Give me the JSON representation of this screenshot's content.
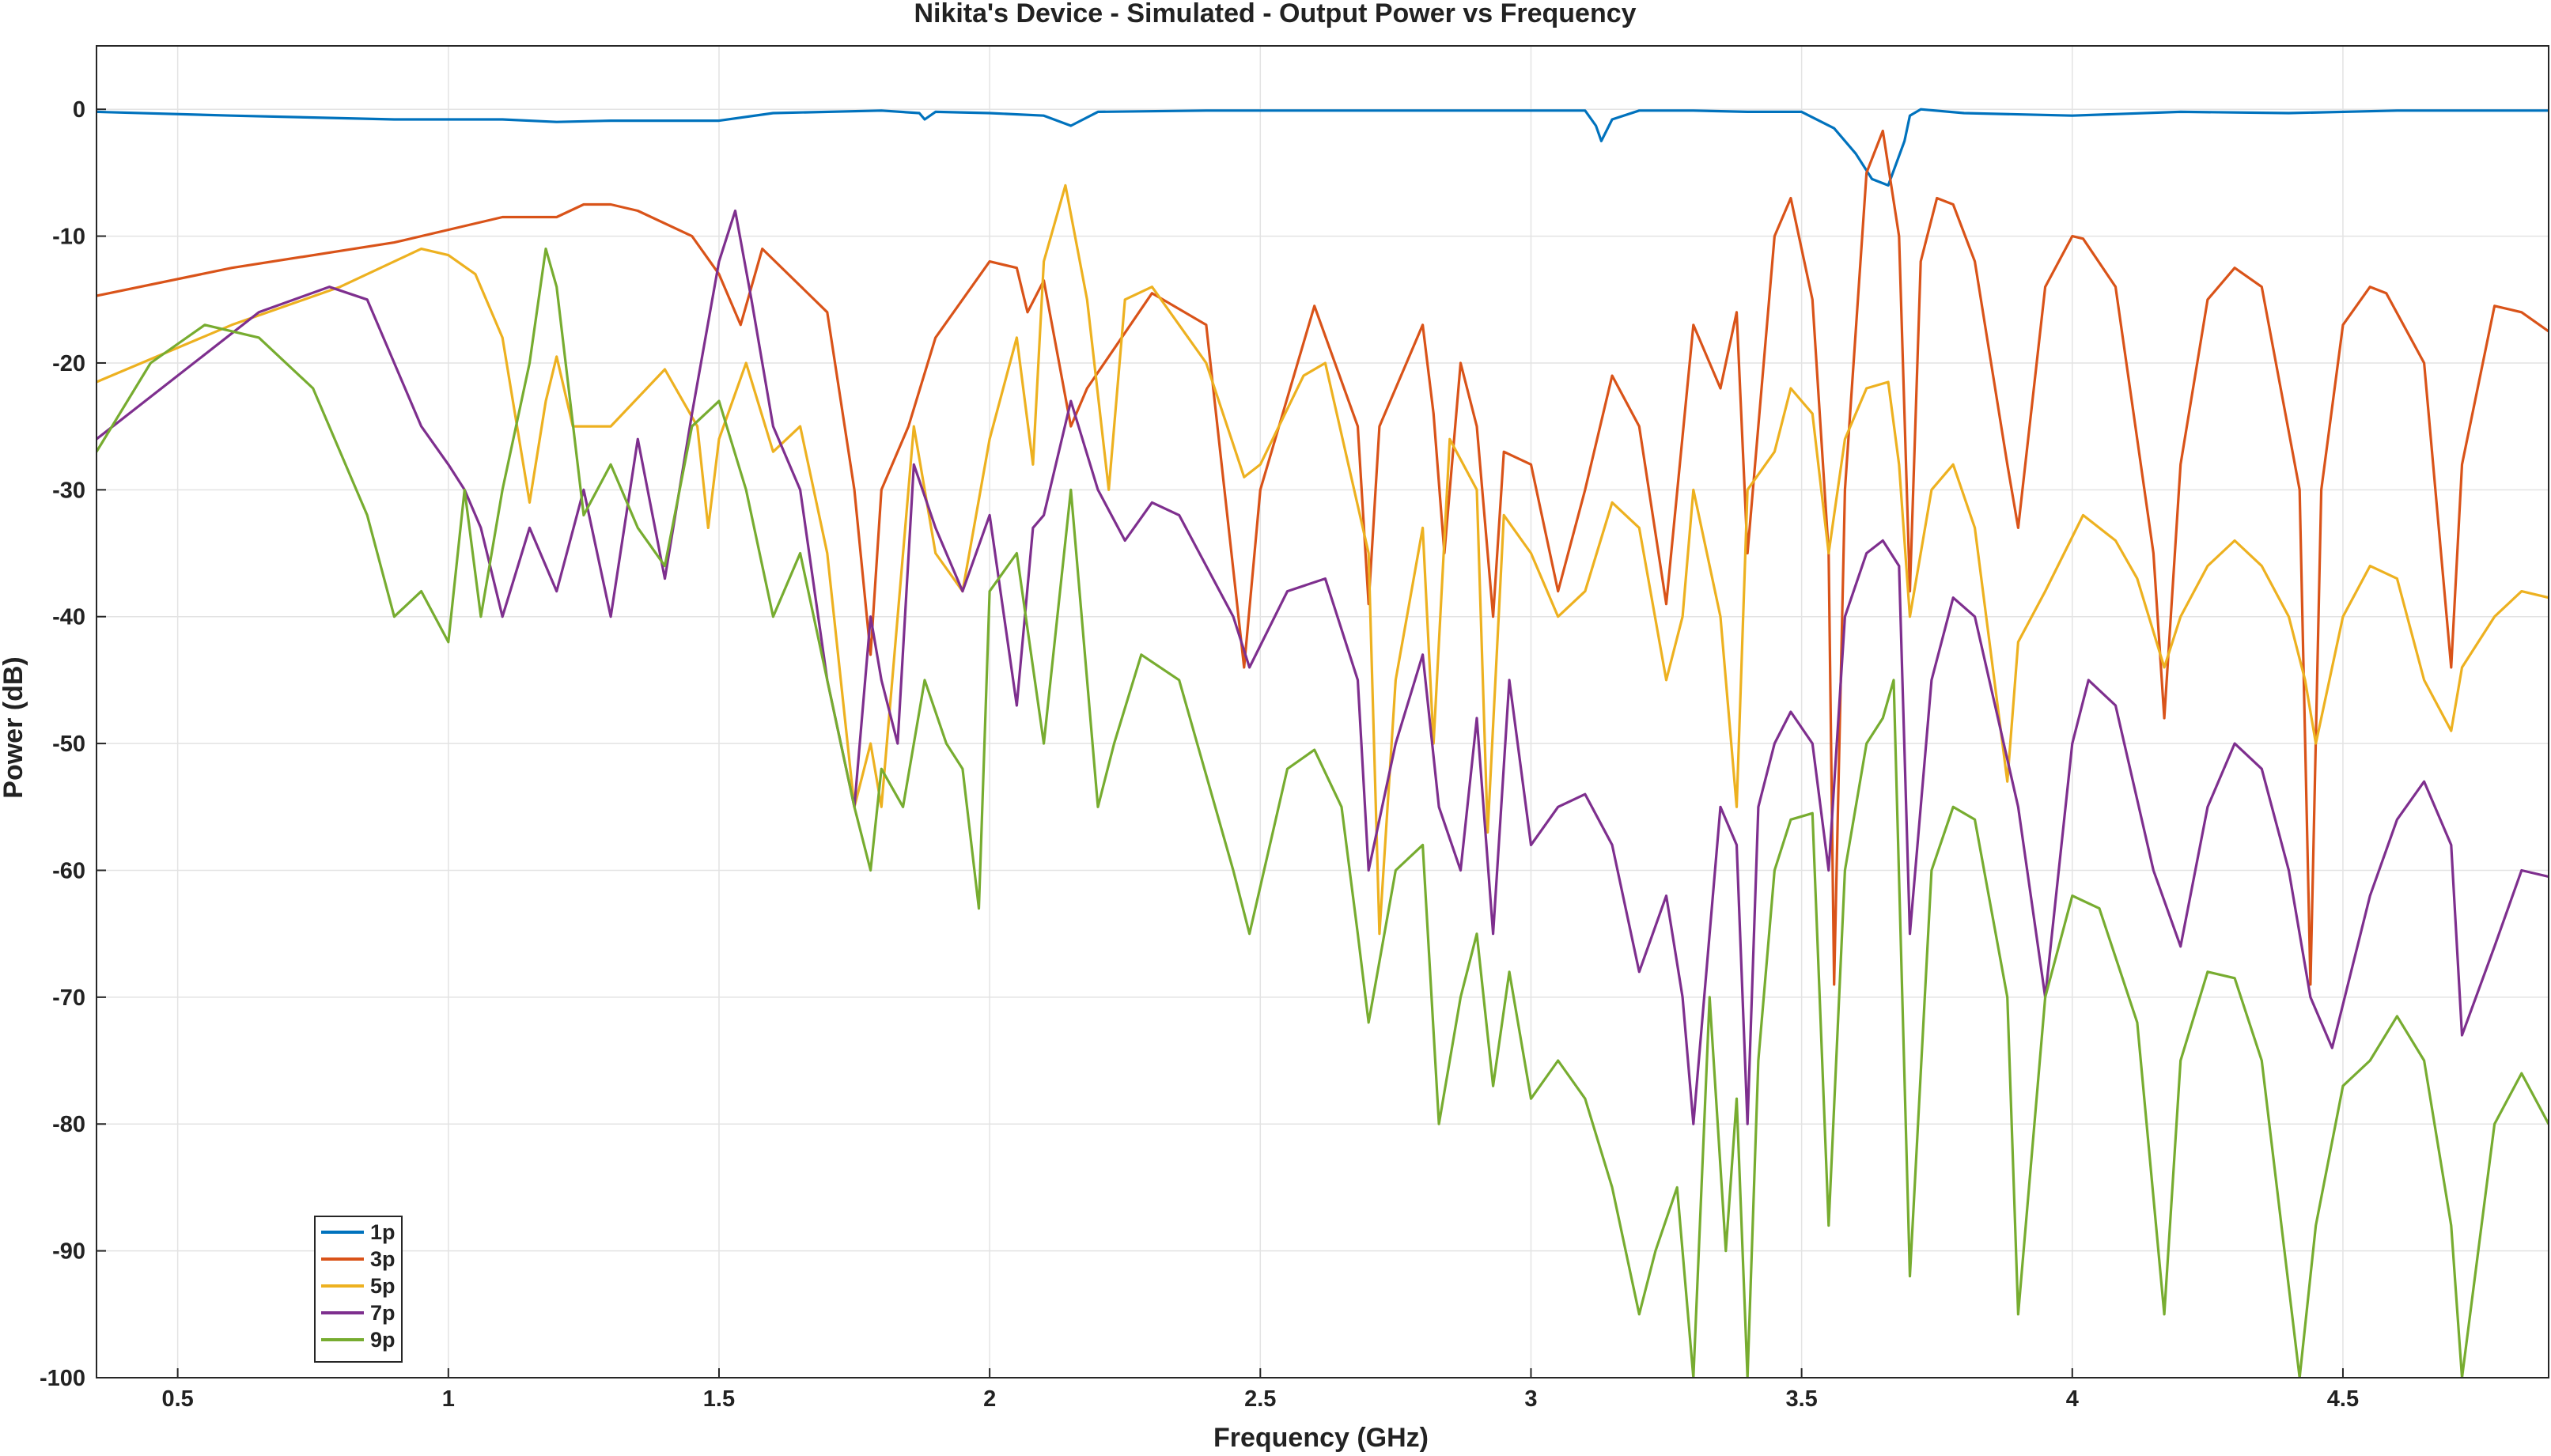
{
  "chart_data": {
    "type": "line",
    "title": "Nikita's Device - Simulated - Output Power vs Frequency",
    "xlabel": "Frequency (GHz)",
    "ylabel": "Power (dB)",
    "xlim": [
      0.35,
      4.88
    ],
    "ylim": [
      -100,
      5
    ],
    "xticks": [
      0.5,
      1,
      1.5,
      2,
      2.5,
      3,
      3.5,
      4,
      4.5
    ],
    "xtick_labels": [
      "0.5",
      "1",
      "1.5",
      "2",
      "2.5",
      "3",
      "3.5",
      "4",
      "4.5"
    ],
    "yticks": [
      0,
      -10,
      -20,
      -30,
      -40,
      -50,
      -60,
      -70,
      -80,
      -90,
      -100
    ],
    "ytick_labels": [
      "0",
      "-10",
      "-20",
      "-30",
      "-40",
      "-50",
      "-60",
      "-70",
      "-80",
      "-90",
      "-100"
    ],
    "grid": true,
    "legend_position": "bottom-left",
    "series": [
      {
        "name": "1p",
        "color": "#0072BD",
        "x": [
          0.35,
          0.6,
          0.9,
          1.1,
          1.2,
          1.3,
          1.5,
          1.6,
          1.8,
          1.87,
          1.88,
          1.9,
          2.0,
          2.1,
          2.15,
          2.2,
          2.4,
          2.6,
          2.8,
          3.1,
          3.12,
          3.13,
          3.15,
          3.2,
          3.3,
          3.4,
          3.5,
          3.56,
          3.6,
          3.63,
          3.66,
          3.69,
          3.7,
          3.72,
          3.8,
          4.0,
          4.2,
          4.4,
          4.6,
          4.8,
          4.88
        ],
        "y": [
          -0.2,
          -0.5,
          -0.8,
          -0.8,
          -1.0,
          -0.9,
          -0.9,
          -0.3,
          -0.1,
          -0.3,
          -0.8,
          -0.2,
          -0.3,
          -0.5,
          -1.3,
          -0.2,
          -0.1,
          -0.1,
          -0.1,
          -0.1,
          -1.3,
          -2.5,
          -0.8,
          -0.1,
          -0.1,
          -0.2,
          -0.2,
          -1.5,
          -3.5,
          -5.5,
          -6.0,
          -2.5,
          -0.5,
          0.0,
          -0.3,
          -0.5,
          -0.2,
          -0.3,
          -0.1,
          -0.1,
          -0.1
        ]
      },
      {
        "name": "3p",
        "color": "#D95319",
        "x": [
          0.35,
          0.6,
          0.9,
          1.1,
          1.2,
          1.25,
          1.3,
          1.35,
          1.45,
          1.5,
          1.54,
          1.58,
          1.7,
          1.75,
          1.78,
          1.8,
          1.85,
          1.9,
          2.0,
          2.05,
          2.07,
          2.1,
          2.15,
          2.18,
          2.3,
          2.4,
          2.47,
          2.5,
          2.6,
          2.68,
          2.7,
          2.72,
          2.8,
          2.82,
          2.84,
          2.87,
          2.9,
          2.93,
          2.95,
          3.0,
          3.05,
          3.1,
          3.15,
          3.2,
          3.25,
          3.3,
          3.35,
          3.38,
          3.4,
          3.45,
          3.48,
          3.52,
          3.55,
          3.56,
          3.58,
          3.62,
          3.65,
          3.68,
          3.7,
          3.72,
          3.75,
          3.78,
          3.82,
          3.88,
          3.9,
          3.95,
          4.0,
          4.02,
          4.08,
          4.15,
          4.17,
          4.2,
          4.25,
          4.3,
          4.35,
          4.42,
          4.44,
          4.46,
          4.5,
          4.55,
          4.58,
          4.65,
          4.7,
          4.72,
          4.78,
          4.83,
          4.88
        ],
        "y": [
          -14.7,
          -12.5,
          -10.5,
          -8.5,
          -8.5,
          -7.5,
          -7.5,
          -8.0,
          -10.0,
          -13.0,
          -17.0,
          -11.0,
          -16.0,
          -30.0,
          -43.0,
          -30.0,
          -25.0,
          -18.0,
          -12.0,
          -12.5,
          -16.0,
          -13.5,
          -25.0,
          -22.0,
          -14.5,
          -17.0,
          -44.0,
          -30.0,
          -15.5,
          -25.0,
          -39.0,
          -25.0,
          -17.0,
          -24.0,
          -35.0,
          -20.0,
          -25.0,
          -40.0,
          -27.0,
          -28.0,
          -38.0,
          -30.0,
          -21.0,
          -25.0,
          -39.0,
          -17.0,
          -22.0,
          -16.0,
          -35.0,
          -10.0,
          -7.0,
          -15.0,
          -35.0,
          -69.0,
          -30.0,
          -5.0,
          -1.7,
          -10.0,
          -38.0,
          -12.0,
          -7.0,
          -7.5,
          -12.0,
          -28.0,
          -33.0,
          -14.0,
          -10.0,
          -10.2,
          -14.0,
          -35.0,
          -48.0,
          -28.0,
          -15.0,
          -12.5,
          -14.0,
          -30.0,
          -69.0,
          -30.0,
          -17.0,
          -14.0,
          -14.5,
          -20.0,
          -44.0,
          -28.0,
          -15.5,
          -16.0,
          -17.5
        ]
      },
      {
        "name": "5p",
        "color": "#EDB120",
        "x": [
          0.35,
          0.6,
          0.8,
          0.95,
          1.0,
          1.05,
          1.1,
          1.15,
          1.18,
          1.2,
          1.23,
          1.3,
          1.4,
          1.46,
          1.48,
          1.5,
          1.55,
          1.6,
          1.65,
          1.7,
          1.75,
          1.78,
          1.8,
          1.82,
          1.86,
          1.9,
          1.95,
          2.0,
          2.05,
          2.08,
          2.1,
          2.14,
          2.18,
          2.22,
          2.25,
          2.3,
          2.4,
          2.47,
          2.5,
          2.58,
          2.62,
          2.7,
          2.72,
          2.75,
          2.8,
          2.82,
          2.85,
          2.9,
          2.92,
          2.95,
          3.0,
          3.05,
          3.1,
          3.15,
          3.2,
          3.25,
          3.28,
          3.3,
          3.35,
          3.38,
          3.4,
          3.45,
          3.48,
          3.52,
          3.55,
          3.58,
          3.62,
          3.66,
          3.68,
          3.7,
          3.74,
          3.78,
          3.82,
          3.88,
          3.9,
          3.95,
          4.02,
          4.08,
          4.12,
          4.17,
          4.2,
          4.25,
          4.3,
          4.35,
          4.4,
          4.43,
          4.45,
          4.5,
          4.55,
          4.6,
          4.65,
          4.7,
          4.72,
          4.78,
          4.83,
          4.88
        ],
        "y": [
          -21.5,
          -17.0,
          -14.0,
          -11.0,
          -11.5,
          -13.0,
          -18.0,
          -31.0,
          -23.0,
          -19.5,
          -25.0,
          -25.0,
          -20.5,
          -25.0,
          -33.0,
          -26.0,
          -20.0,
          -27.0,
          -25.0,
          -35.0,
          -55.0,
          -50.0,
          -55.0,
          -45.0,
          -25.0,
          -35.0,
          -38.0,
          -26.0,
          -18.0,
          -28.0,
          -12.0,
          -6.0,
          -15.0,
          -30.0,
          -15.0,
          -14.0,
          -20.0,
          -29.0,
          -28.0,
          -21.0,
          -20.0,
          -35.0,
          -65.0,
          -45.0,
          -33.0,
          -50.0,
          -26.0,
          -30.0,
          -57.0,
          -32.0,
          -35.0,
          -40.0,
          -38.0,
          -31.0,
          -33.0,
          -45.0,
          -40.0,
          -30.0,
          -40.0,
          -55.0,
          -30.0,
          -27.0,
          -22.0,
          -24.0,
          -35.0,
          -26.0,
          -22.0,
          -21.5,
          -28.0,
          -40.0,
          -30.0,
          -28.0,
          -33.0,
          -53.0,
          -42.0,
          -38.0,
          -32.0,
          -34.0,
          -37.0,
          -44.0,
          -40.0,
          -36.0,
          -34.0,
          -36.0,
          -40.0,
          -45.0,
          -50.0,
          -40.0,
          -36.0,
          -37.0,
          -45.0,
          -49.0,
          -44.0,
          -40.0,
          -38.0,
          -38.5
        ]
      },
      {
        "name": "7p",
        "color": "#7E2F8E",
        "x": [
          0.35,
          0.5,
          0.65,
          0.78,
          0.85,
          0.95,
          1.0,
          1.03,
          1.06,
          1.1,
          1.15,
          1.2,
          1.25,
          1.3,
          1.35,
          1.4,
          1.45,
          1.5,
          1.53,
          1.56,
          1.6,
          1.65,
          1.7,
          1.75,
          1.78,
          1.8,
          1.83,
          1.86,
          1.9,
          1.95,
          2.0,
          2.05,
          2.08,
          2.1,
          2.15,
          2.2,
          2.25,
          2.3,
          2.35,
          2.45,
          2.48,
          2.55,
          2.62,
          2.68,
          2.7,
          2.75,
          2.8,
          2.83,
          2.87,
          2.9,
          2.93,
          2.96,
          3.0,
          3.05,
          3.1,
          3.15,
          3.2,
          3.25,
          3.28,
          3.3,
          3.35,
          3.38,
          3.4,
          3.42,
          3.45,
          3.48,
          3.52,
          3.55,
          3.58,
          3.62,
          3.65,
          3.68,
          3.7,
          3.74,
          3.78,
          3.82,
          3.9,
          3.95,
          4.0,
          4.03,
          4.08,
          4.15,
          4.2,
          4.25,
          4.3,
          4.35,
          4.4,
          4.44,
          4.48,
          4.55,
          4.6,
          4.65,
          4.7,
          4.72,
          4.78,
          4.83,
          4.88
        ],
        "y": [
          -26.0,
          -21.0,
          -16.0,
          -14.0,
          -15.0,
          -25.0,
          -28.0,
          -30.0,
          -33.0,
          -40.0,
          -33.0,
          -38.0,
          -30.0,
          -40.0,
          -26.0,
          -37.0,
          -24.0,
          -12.0,
          -8.0,
          -15.0,
          -25.0,
          -30.0,
          -45.0,
          -55.0,
          -40.0,
          -45.0,
          -50.0,
          -28.0,
          -33.0,
          -38.0,
          -32.0,
          -47.0,
          -33.0,
          -32.0,
          -23.0,
          -30.0,
          -34.0,
          -31.0,
          -32.0,
          -40.0,
          -44.0,
          -38.0,
          -37.0,
          -45.0,
          -60.0,
          -50.0,
          -43.0,
          -55.0,
          -60.0,
          -48.0,
          -65.0,
          -45.0,
          -58.0,
          -55.0,
          -54.0,
          -58.0,
          -68.0,
          -62.0,
          -70.0,
          -80.0,
          -55.0,
          -58.0,
          -80.0,
          -55.0,
          -50.0,
          -47.5,
          -50.0,
          -60.0,
          -40.0,
          -35.0,
          -34.0,
          -36.0,
          -65.0,
          -45.0,
          -38.5,
          -40.0,
          -55.0,
          -70.0,
          -50.0,
          -45.0,
          -47.0,
          -60.0,
          -66.0,
          -55.0,
          -50.0,
          -52.0,
          -60.0,
          -70.0,
          -74.0,
          -62.0,
          -56.0,
          -53.0,
          -58.0,
          -73.0,
          -66.0,
          -60.0,
          -60.5
        ]
      },
      {
        "name": "9p",
        "color": "#77AC30",
        "x": [
          0.35,
          0.45,
          0.55,
          0.65,
          0.75,
          0.85,
          0.9,
          0.95,
          1.0,
          1.03,
          1.06,
          1.1,
          1.15,
          1.18,
          1.2,
          1.25,
          1.3,
          1.35,
          1.4,
          1.45,
          1.5,
          1.55,
          1.6,
          1.65,
          1.7,
          1.75,
          1.78,
          1.8,
          1.84,
          1.88,
          1.92,
          1.95,
          1.98,
          2.0,
          2.05,
          2.1,
          2.15,
          2.2,
          2.23,
          2.28,
          2.35,
          2.45,
          2.48,
          2.55,
          2.6,
          2.65,
          2.68,
          2.7,
          2.75,
          2.8,
          2.83,
          2.87,
          2.9,
          2.93,
          2.96,
          3.0,
          3.05,
          3.1,
          3.15,
          3.2,
          3.23,
          3.27,
          3.3,
          3.33,
          3.36,
          3.38,
          3.4,
          3.42,
          3.45,
          3.48,
          3.52,
          3.55,
          3.58,
          3.62,
          3.65,
          3.67,
          3.7,
          3.74,
          3.78,
          3.82,
          3.88,
          3.9,
          3.95,
          4.0,
          4.05,
          4.12,
          4.17,
          4.2,
          4.25,
          4.3,
          4.35,
          4.42,
          4.45,
          4.5,
          4.55,
          4.6,
          4.65,
          4.7,
          4.72,
          4.78,
          4.83,
          4.88
        ],
        "y": [
          -27.0,
          -20.0,
          -17.0,
          -18.0,
          -22.0,
          -32.0,
          -40.0,
          -38.0,
          -42.0,
          -30.0,
          -40.0,
          -30.0,
          -20.0,
          -11.0,
          -14.0,
          -32.0,
          -28.0,
          -33.0,
          -36.0,
          -25.0,
          -23.0,
          -30.0,
          -40.0,
          -35.0,
          -45.0,
          -55.0,
          -60.0,
          -52.0,
          -55.0,
          -45.0,
          -50.0,
          -52.0,
          -63.0,
          -38.0,
          -35.0,
          -50.0,
          -30.0,
          -55.0,
          -50.0,
          -43.0,
          -45.0,
          -60.0,
          -65.0,
          -52.0,
          -50.5,
          -55.0,
          -65.0,
          -72.0,
          -60.0,
          -58.0,
          -80.0,
          -70.0,
          -65.0,
          -77.0,
          -68.0,
          -78.0,
          -75.0,
          -78.0,
          -85.0,
          -95.0,
          -90.0,
          -85.0,
          -100.0,
          -70.0,
          -90.0,
          -78.0,
          -100.0,
          -75.0,
          -60.0,
          -56.0,
          -55.5,
          -88.0,
          -60.0,
          -50.0,
          -48.0,
          -45.0,
          -92.0,
          -60.0,
          -55.0,
          -56.0,
          -70.0,
          -95.0,
          -70.0,
          -62.0,
          -63.0,
          -72.0,
          -95.0,
          -75.0,
          -68.0,
          -68.5,
          -75.0,
          -100.0,
          -88.0,
          -77.0,
          -75.0,
          -71.5,
          -75.0,
          -88.0,
          -100.0,
          -80.0,
          -76.0,
          -80.0
        ]
      }
    ]
  }
}
